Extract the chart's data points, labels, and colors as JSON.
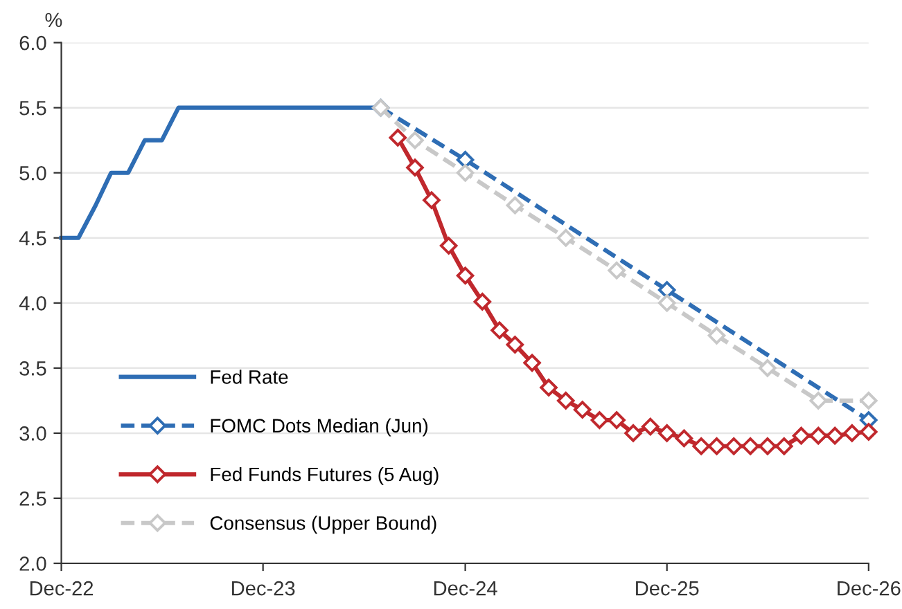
{
  "chart_data": {
    "type": "line",
    "ylabel": "%",
    "xlim": [
      "2022-12",
      "2026-12"
    ],
    "ylim": [
      2.0,
      6.0
    ],
    "xticks": [
      {
        "value": "2022-12",
        "label": "Dec-22"
      },
      {
        "value": "2023-12",
        "label": "Dec-23"
      },
      {
        "value": "2024-12",
        "label": "Dec-24"
      },
      {
        "value": "2025-12",
        "label": "Dec-25"
      },
      {
        "value": "2026-12",
        "label": "Dec-26"
      }
    ],
    "yticks": [
      {
        "value": 2.0,
        "label": "2.0"
      },
      {
        "value": 2.5,
        "label": "2.5"
      },
      {
        "value": 3.0,
        "label": "3.0"
      },
      {
        "value": 3.5,
        "label": "3.5"
      },
      {
        "value": 4.0,
        "label": "4.0"
      },
      {
        "value": 4.5,
        "label": "4.5"
      },
      {
        "value": 5.0,
        "label": "5.0"
      },
      {
        "value": 5.5,
        "label": "5.5"
      },
      {
        "value": 6.0,
        "label": "6.0"
      }
    ],
    "grid": "y",
    "legend": "bottom left",
    "series": [
      {
        "name": "Fed Rate",
        "color": "#2e6db4",
        "line_style": "solid",
        "marker": "none",
        "x": [
          "2022-12",
          "2023-01",
          "2023-02",
          "2023-03",
          "2023-04",
          "2023-05",
          "2023-06",
          "2023-07",
          "2023-08",
          "2023-09",
          "2023-10",
          "2023-11",
          "2023-12",
          "2024-01",
          "2024-02",
          "2024-03",
          "2024-04",
          "2024-05",
          "2024-06",
          "2024-07"
        ],
        "values": [
          4.5,
          4.5,
          4.75,
          5.0,
          5.0,
          5.25,
          5.25,
          5.5,
          5.5,
          5.5,
          5.5,
          5.5,
          5.5,
          5.5,
          5.5,
          5.5,
          5.5,
          5.5,
          5.5,
          5.5
        ]
      },
      {
        "name": "FOMC Dots Median (Jun)",
        "color": "#2e6db4",
        "line_style": "dashed",
        "marker": "diamond",
        "x": [
          "2024-07",
          "2024-12",
          "2025-12",
          "2026-12"
        ],
        "values": [
          5.5,
          5.1,
          4.1,
          3.1
        ]
      },
      {
        "name": "Fed Funds Futures (5 Aug)",
        "color": "#c0282d",
        "line_style": "solid",
        "marker": "diamond",
        "x": [
          "2024-08",
          "2024-09",
          "2024-10",
          "2024-11",
          "2024-12",
          "2025-01",
          "2025-02",
          "2025-03",
          "2025-04",
          "2025-05",
          "2025-06",
          "2025-07",
          "2025-08",
          "2025-09",
          "2025-10",
          "2025-11",
          "2025-12",
          "2026-01",
          "2026-02",
          "2026-03",
          "2026-04",
          "2026-05",
          "2026-06",
          "2026-07",
          "2026-08",
          "2026-09",
          "2026-10",
          "2026-11",
          "2026-12"
        ],
        "values": [
          5.27,
          5.04,
          4.79,
          4.44,
          4.21,
          4.01,
          3.79,
          3.68,
          3.54,
          3.35,
          3.25,
          3.18,
          3.1,
          3.1,
          3.0,
          3.05,
          3.0,
          2.96,
          2.9,
          2.9,
          2.9,
          2.9,
          2.9,
          2.9,
          2.98,
          2.98,
          2.98,
          3.0,
          3.01
        ]
      },
      {
        "name": "Consensus (Upper Bound)",
        "color": "#c8c8c8",
        "line_style": "dashed",
        "marker": "diamond",
        "x": [
          "2024-07",
          "2024-09",
          "2024-12",
          "2025-03",
          "2025-06",
          "2025-09",
          "2025-12",
          "2026-03",
          "2026-06",
          "2026-09",
          "2026-12"
        ],
        "values": [
          5.5,
          5.25,
          5.0,
          4.75,
          4.5,
          4.25,
          4.0,
          3.75,
          3.5,
          3.25,
          3.25
        ]
      }
    ]
  }
}
